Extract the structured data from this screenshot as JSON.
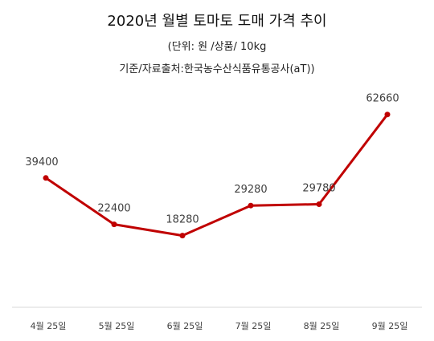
{
  "chart_data": {
    "type": "line",
    "title": "2020년 월별 토마토 도매 가격 추이",
    "subtitle_lines": [
      "(단위: 원 /상품/ 10kg",
      "기준/자료출처:한국농수산식품유통공사(aT))"
    ],
    "categories": [
      "4월 25일",
      "5월 25일",
      "6월 25일",
      "7월 25일",
      "8월 25일",
      "9월 25일"
    ],
    "series": [
      {
        "values": [
          39400,
          22400,
          18280,
          29280,
          29780,
          62660
        ]
      }
    ],
    "line_color": "#c00000",
    "grid": false,
    "legend": "none"
  }
}
